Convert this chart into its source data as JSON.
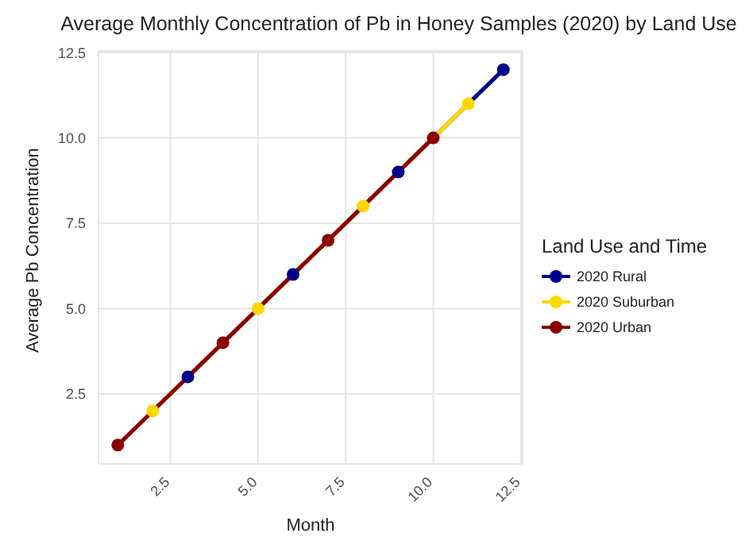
{
  "chart_data": {
    "type": "line",
    "title": "Average Monthly Concentration of Pb in Honey Samples (2020) by Land Use",
    "xlabel": "Month",
    "ylabel": "Average Pb Concentration",
    "legend_title": "Land Use and Time",
    "series": [
      {
        "name": "2020 Rural",
        "color": "#00008b",
        "x": [
          3,
          6,
          9,
          12
        ],
        "values": [
          3,
          6,
          9,
          12
        ]
      },
      {
        "name": "2020 Suburban",
        "color": "#ffd700",
        "x": [
          2,
          5,
          8,
          11
        ],
        "values": [
          2,
          5,
          8,
          11
        ]
      },
      {
        "name": "2020 Urban",
        "color": "#8b0000",
        "x": [
          1,
          4,
          7,
          10
        ],
        "values": [
          1,
          4,
          7,
          10
        ]
      }
    ],
    "xlim": [
      0.45,
      12.55
    ],
    "ylim": [
      0.45,
      12.55
    ],
    "xticks": [
      {
        "value": 2.5,
        "label": "2.5"
      },
      {
        "value": 5,
        "label": "5.0"
      },
      {
        "value": 7.5,
        "label": "7.5"
      },
      {
        "value": 10,
        "label": "10.0"
      },
      {
        "value": 12.5,
        "label": "12.5"
      }
    ],
    "yticks": [
      {
        "value": 2.5,
        "label": "2.5"
      },
      {
        "value": 5,
        "label": "5.0"
      },
      {
        "value": 7.5,
        "label": "7.5"
      },
      {
        "value": 10,
        "label": "10.0"
      },
      {
        "value": 12.5,
        "label": "12.5"
      }
    ],
    "grid": true,
    "legend": "right",
    "marker": "circle",
    "line_style": "solid"
  }
}
